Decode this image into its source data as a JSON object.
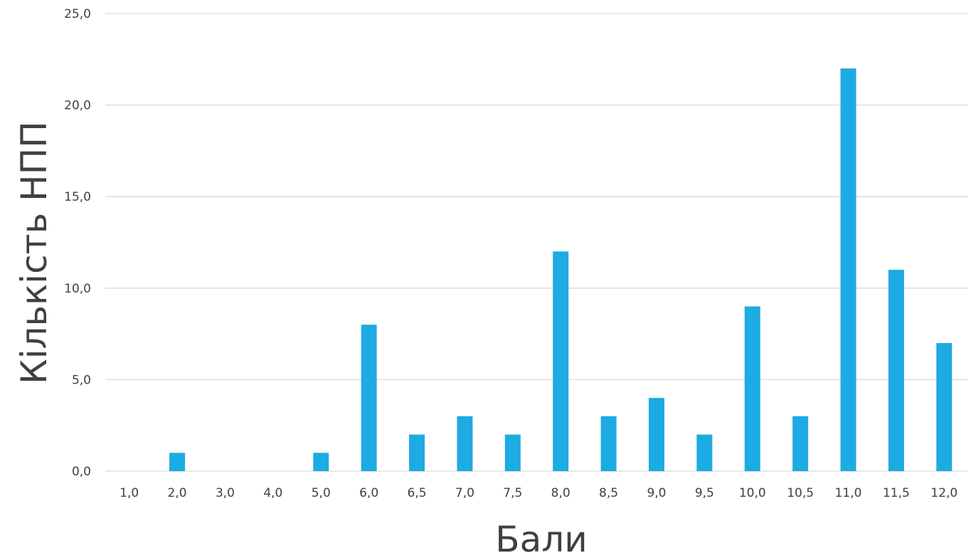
{
  "chart_data": {
    "type": "bar",
    "categories": [
      "1,0",
      "2,0",
      "3,0",
      "4,0",
      "5,0",
      "6,0",
      "6,5",
      "7,0",
      "7,5",
      "8,0",
      "8,5",
      "9,0",
      "9,5",
      "10,0",
      "10,5",
      "11,0",
      "11,5",
      "12,0"
    ],
    "values": [
      0,
      1,
      0,
      0,
      1,
      8,
      2,
      3,
      2,
      12,
      3,
      4,
      2,
      9,
      3,
      22,
      11,
      7
    ],
    "xlabel": "Бали",
    "ylabel": "Кількість НПП",
    "ylim": [
      0,
      25
    ],
    "y_ticks": [
      {
        "value": 0,
        "label": "0,0"
      },
      {
        "value": 5,
        "label": "5,0"
      },
      {
        "value": 10,
        "label": "10,0"
      },
      {
        "value": 15,
        "label": "15,0"
      },
      {
        "value": 20,
        "label": "20,0"
      },
      {
        "value": 25,
        "label": "25,0"
      }
    ],
    "grid": true,
    "legend": "none",
    "bar_color": "#1eaae2",
    "grid_color": "#d9d9d9",
    "text_color": "#404040"
  }
}
